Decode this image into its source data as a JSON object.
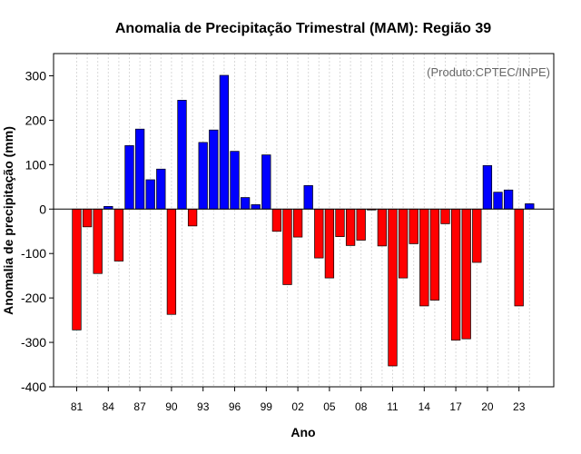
{
  "colors": {
    "positive": "#0000ff",
    "negative": "#ff0000",
    "grid": "#d9d9d9",
    "axis": "#000000",
    "credit": "#666666"
  },
  "chart_data": {
    "type": "bar",
    "title": "Anomalia de Precipitação Trimestral (MAM): Região 39",
    "credit": "(Produto:CPTEC/INPE)",
    "xlabel": "Ano",
    "ylabel": "Anomalia de precipitação (mm)",
    "ylim": [
      -400,
      350
    ],
    "yticks": [
      -400,
      -300,
      -200,
      -100,
      0,
      100,
      200,
      300
    ],
    "categories": [
      "1981",
      "1982",
      "1983",
      "1984",
      "1985",
      "1986",
      "1987",
      "1988",
      "1989",
      "1990",
      "1991",
      "1992",
      "1993",
      "1994",
      "1995",
      "1996",
      "1997",
      "1998",
      "1999",
      "2000",
      "2001",
      "2002",
      "2003",
      "2004",
      "2005",
      "2006",
      "2007",
      "2008",
      "2009",
      "2010",
      "2011",
      "2012",
      "2013",
      "2014",
      "2015",
      "2016",
      "2017",
      "2018",
      "2019",
      "2020",
      "2021",
      "2022",
      "2023",
      "2024"
    ],
    "xtick_labels": [
      {
        "index": 0,
        "label": "81"
      },
      {
        "index": 3,
        "label": "84"
      },
      {
        "index": 6,
        "label": "87"
      },
      {
        "index": 9,
        "label": "90"
      },
      {
        "index": 12,
        "label": "93"
      },
      {
        "index": 15,
        "label": "96"
      },
      {
        "index": 18,
        "label": "99"
      },
      {
        "index": 21,
        "label": "02"
      },
      {
        "index": 24,
        "label": "05"
      },
      {
        "index": 27,
        "label": "08"
      },
      {
        "index": 30,
        "label": "11"
      },
      {
        "index": 33,
        "label": "14"
      },
      {
        "index": 36,
        "label": "17"
      },
      {
        "index": 39,
        "label": "20"
      },
      {
        "index": 42,
        "label": "23"
      }
    ],
    "values": [
      -272,
      -40,
      -145,
      6,
      -117,
      143,
      180,
      66,
      90,
      -237,
      245,
      -38,
      150,
      178,
      301,
      130,
      26,
      10,
      122,
      -50,
      -170,
      -63,
      53,
      -110,
      -155,
      -62,
      -82,
      -70,
      -2,
      -83,
      -353,
      -155,
      -78,
      -218,
      -205,
      -33,
      -295,
      -292,
      -120,
      98,
      38,
      43,
      -218,
      12
    ],
    "grid": true
  }
}
